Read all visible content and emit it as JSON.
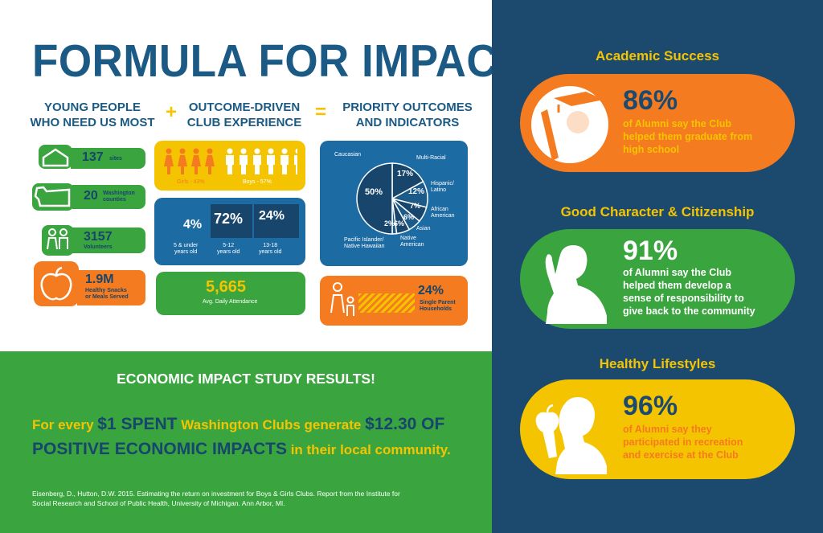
{
  "title": "FORMULA FOR IMPACT",
  "columns": {
    "col1": [
      "YOUNG PEOPLE",
      "WHO NEED US MOST"
    ],
    "plus": "+",
    "col2": [
      "OUTCOME-DRIVEN",
      "CLUB EXPERIENCE"
    ],
    "equals": "=",
    "col3": [
      "PRIORITY OUTCOMES",
      "AND INDICATORS"
    ]
  },
  "young_people": [
    {
      "value": "137",
      "label": "sites",
      "icon": "house-icon"
    },
    {
      "value": "20",
      "label_lines": [
        "Washington",
        "counties"
      ],
      "icon": "washington-state-icon"
    },
    {
      "value": "3157",
      "label": "Volunteers",
      "icon": "people-icon"
    },
    {
      "value": "1.9M",
      "label_lines": [
        "Healthy Snacks",
        "or Meals Served"
      ],
      "icon": "apple-icon"
    }
  ],
  "gender": {
    "girls": "Girls - 43%",
    "boys": "Boys - 57%",
    "girls_pct": 43,
    "boys_pct": 57
  },
  "ages": [
    {
      "pct": "4%",
      "label_lines": [
        "5 & under",
        "years old"
      ]
    },
    {
      "pct": "72%",
      "label_lines": [
        "5-12",
        "years old"
      ]
    },
    {
      "pct": "24%",
      "label_lines": [
        "13-18",
        "years old"
      ]
    }
  ],
  "attendance": {
    "value": "5,665",
    "label": "Avg. Daily Attendance"
  },
  "chart_data": {
    "type": "pie",
    "slices": [
      {
        "label": "Caucasian",
        "pct": "50%",
        "value": 50
      },
      {
        "label": "Multi-Racial",
        "pct": "17%",
        "value": 17
      },
      {
        "label": "Hispanic/ Latino",
        "pct": "12%",
        "value": 12
      },
      {
        "label": "African American",
        "pct": "7%",
        "value": 7
      },
      {
        "label": "Asian",
        "pct": "6%",
        "value": 6
      },
      {
        "label": "Native American",
        "pct": "6%",
        "value": 6
      },
      {
        "label": "Pacific Islander/ Native Hawaiian",
        "pct": "2%",
        "value": 2
      }
    ]
  },
  "single_parent": {
    "pct": "24%",
    "label_lines": [
      "Single Parent",
      "Households"
    ],
    "value": 24
  },
  "economic": {
    "heading": "ECONOMIC IMPACT STUDY RESULTS!",
    "line1_a": "For every ",
    "line1_b": "$1 SPENT",
    "line1_c": " Washington Clubs generate ",
    "line1_d": "$12.30 OF",
    "line2_a": "POSITIVE ECONOMIC IMPACTS",
    "line2_b": " in their local community.",
    "citation_lines": [
      "Eisenberg, D., Hutton, D.W. 2015. Estimating the return on investment for Boys & Girls Clubs. Report from the Institute for",
      "Social Research and School of Public Health, University of Michigan. Ann Arbor, MI."
    ]
  },
  "outcomes": [
    {
      "title": "Academic Success",
      "pct": "86%",
      "text_lines": [
        "of Alumni say the Club",
        "helped them graduate from",
        "high school"
      ],
      "icon": "graduate-icon",
      "color": "#f47b20",
      "text_color": "#f5c400",
      "num_color": "#1c4a6e"
    },
    {
      "title": "Good Character & Citizenship",
      "pct": "91%",
      "text_lines": [
        "of Alumni say the Club",
        "helped them develop a",
        "sense of responsibility to",
        "give back to the community"
      ],
      "icon": "pledge-icon",
      "color": "#3aa53f",
      "text_color": "#ffffff",
      "num_color": "#ffffff"
    },
    {
      "title": "Healthy Lifestyles",
      "pct": "96%",
      "text_lines": [
        "of Alumni say they",
        "participated in recreation",
        "and exercise at the Club"
      ],
      "icon": "apple-eater-icon",
      "color": "#f5c400",
      "text_color": "#f47b20",
      "num_color": "#1c4a6e"
    }
  ]
}
